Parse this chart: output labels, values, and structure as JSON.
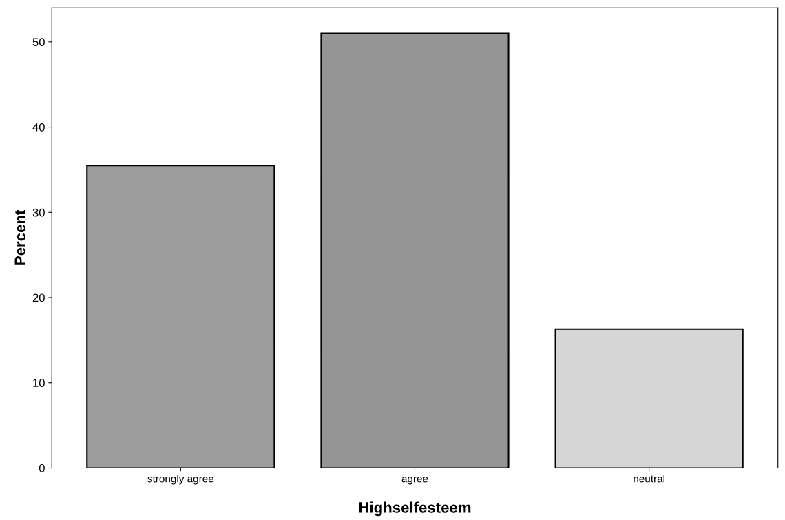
{
  "chart_data": {
    "type": "bar",
    "xlabel": "Highselfesteem",
    "ylabel": "Percent",
    "categories": [
      "strongly agree",
      "agree",
      "neutral"
    ],
    "values": [
      35.5,
      51,
      16.3
    ],
    "colors": [
      "#9c9c9c",
      "#959595",
      "#d6d6d6"
    ],
    "ylim": [
      0,
      54
    ],
    "yticks": [
      0,
      10,
      20,
      30,
      40,
      50
    ],
    "grid": false
  }
}
